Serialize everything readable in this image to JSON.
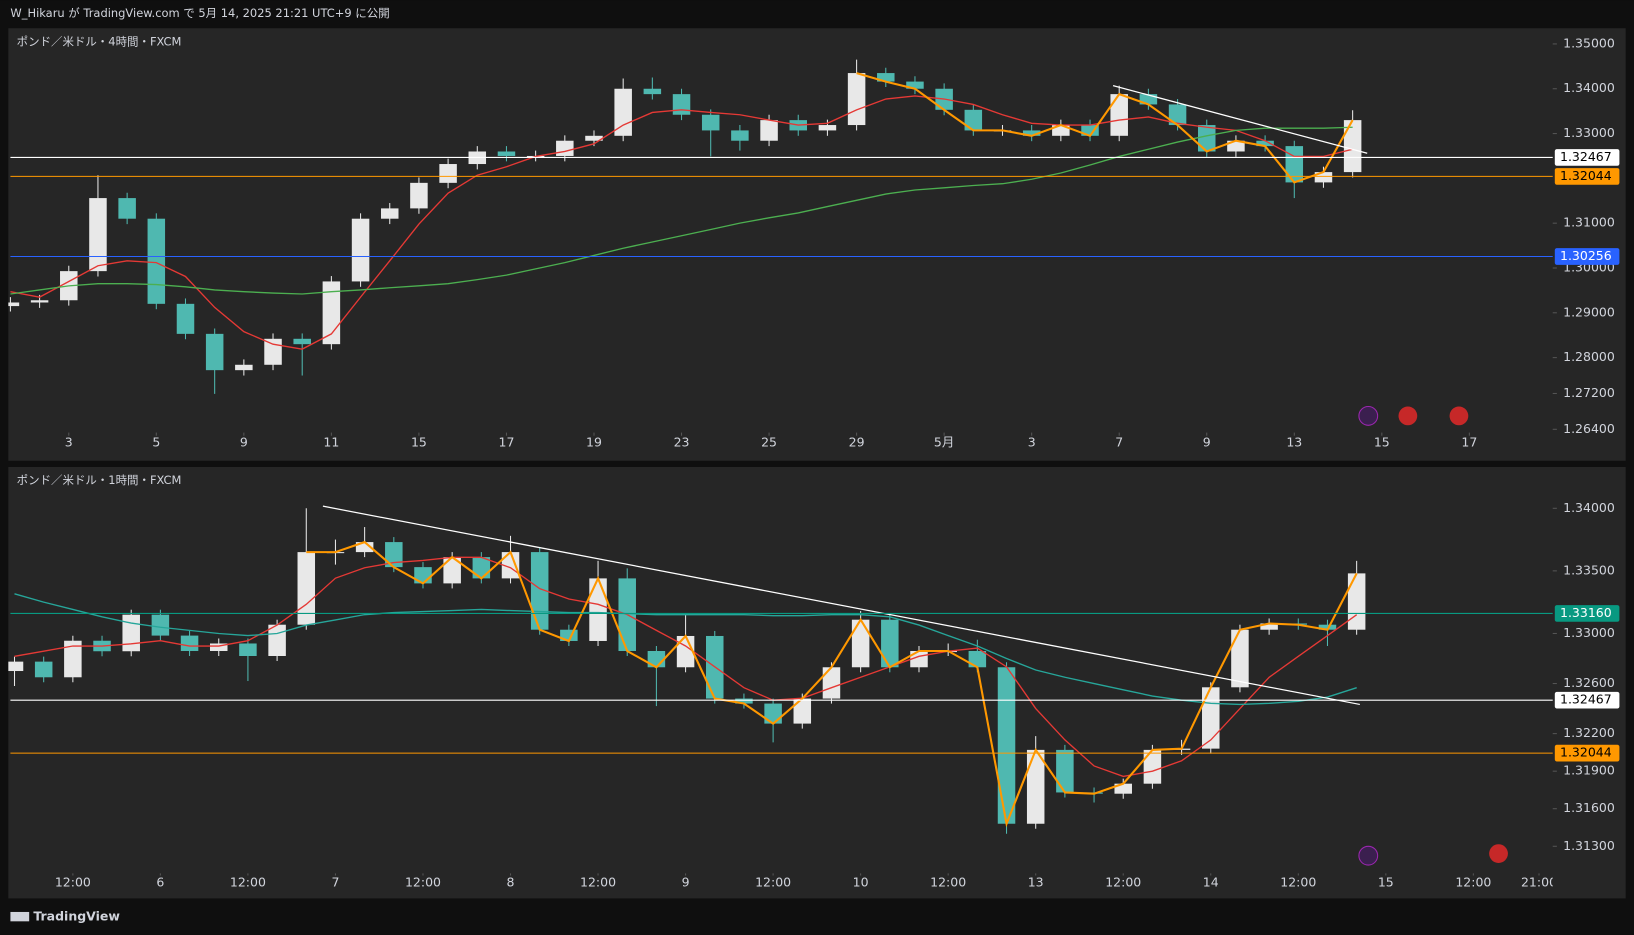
{
  "header": {
    "text": "W_Hikaru が TradingView.com で 5月 14, 2025 21:21 UTC+9 に公開"
  },
  "footer": {
    "text": "TradingView"
  },
  "chart_data": [
    {
      "type": "candlestick",
      "title": "ポンド／米ドル・4時間・FXCM",
      "up_color": "#e8e8e8",
      "down_color": "#4fb8b0",
      "open": [
        1.2915,
        1.2923,
        1.2928,
        1.2993,
        1.3156,
        1.311,
        1.292,
        1.2853,
        1.2772,
        1.2784,
        1.2842,
        1.283,
        1.297,
        1.311,
        1.3133,
        1.319,
        1.3232,
        1.326,
        1.325,
        1.325,
        1.3284,
        1.3295,
        1.34,
        1.3388,
        1.3342,
        1.3307,
        1.3284,
        1.333,
        1.3307,
        1.3319,
        1.3435,
        1.3416,
        1.34,
        1.3353,
        1.3307,
        1.3307,
        1.3295,
        1.3319,
        1.3295,
        1.3388,
        1.3365,
        1.3319,
        1.326,
        1.3284,
        1.3272,
        1.3191,
        1.3214
      ],
      "high": [
        1.2935,
        1.294,
        1.3005,
        1.3207,
        1.3168,
        1.3122,
        1.2932,
        1.2865,
        1.2796,
        1.2854,
        1.2854,
        1.2982,
        1.3122,
        1.3145,
        1.3202,
        1.3244,
        1.3272,
        1.3272,
        1.3262,
        1.3296,
        1.3307,
        1.3423,
        1.3425,
        1.34,
        1.3354,
        1.3319,
        1.3342,
        1.3342,
        1.3331,
        1.3465,
        1.3447,
        1.3428,
        1.3412,
        1.3365,
        1.3319,
        1.3319,
        1.3331,
        1.3331,
        1.3407,
        1.34,
        1.3377,
        1.3331,
        1.3296,
        1.3296,
        1.3284,
        1.3226,
        1.3352
      ],
      "low": [
        1.2903,
        1.2911,
        1.2916,
        1.2981,
        1.3098,
        1.2908,
        1.2841,
        1.2719,
        1.276,
        1.2772,
        1.276,
        1.2818,
        1.2958,
        1.3098,
        1.3121,
        1.3178,
        1.322,
        1.3238,
        1.3238,
        1.3238,
        1.3272,
        1.3283,
        1.3376,
        1.333,
        1.3249,
        1.3262,
        1.3272,
        1.3295,
        1.3295,
        1.3307,
        1.3404,
        1.3388,
        1.3341,
        1.3295,
        1.3295,
        1.3283,
        1.3283,
        1.3283,
        1.3283,
        1.3353,
        1.3307,
        1.3248,
        1.3248,
        1.326,
        1.3156,
        1.3179,
        1.3202
      ],
      "close": [
        1.2923,
        1.2928,
        1.2993,
        1.3156,
        1.311,
        1.292,
        1.2853,
        1.2772,
        1.2784,
        1.2842,
        1.283,
        1.297,
        1.311,
        1.3133,
        1.319,
        1.3232,
        1.326,
        1.325,
        1.325,
        1.3284,
        1.3295,
        1.34,
        1.3388,
        1.3342,
        1.3307,
        1.3284,
        1.333,
        1.3307,
        1.3319,
        1.3435,
        1.3416,
        1.34,
        1.3353,
        1.3307,
        1.3307,
        1.3295,
        1.3319,
        1.3295,
        1.3388,
        1.3365,
        1.3319,
        1.326,
        1.3284,
        1.3272,
        1.3191,
        1.3214,
        1.333
      ],
      "series": [
        {
          "color": "#e53935",
          "values": [
            1.2947,
            1.2935,
            1.297,
            1.3005,
            1.3016,
            1.3012,
            1.2981,
            1.2912,
            1.2858,
            1.283,
            1.2819,
            1.2853,
            1.2935,
            1.3016,
            1.3098,
            1.3167,
            1.3207,
            1.3226,
            1.3249,
            1.326,
            1.3277,
            1.3319,
            1.3347,
            1.3353,
            1.3347,
            1.3342,
            1.333,
            1.3319,
            1.3323,
            1.3353,
            1.3377,
            1.3384,
            1.3377,
            1.3365,
            1.3342,
            1.3323,
            1.3319,
            1.3319,
            1.333,
            1.3337,
            1.3323,
            1.3314,
            1.3307,
            1.3284,
            1.3249,
            1.3249,
            1.3265
          ]
        },
        {
          "color": "#4caf50",
          "values": [
            1.2942,
            1.2951,
            1.296,
            1.2965,
            1.2965,
            1.2963,
            1.2958,
            1.2951,
            1.2947,
            1.2944,
            1.2942,
            1.2947,
            1.2951,
            1.2956,
            1.296,
            1.2965,
            1.2974,
            1.2984,
            1.2998,
            1.3012,
            1.3028,
            1.3044,
            1.3058,
            1.3072,
            1.3086,
            1.31,
            1.3112,
            1.3123,
            1.3137,
            1.3151,
            1.3165,
            1.3174,
            1.3179,
            1.3184,
            1.3188,
            1.3198,
            1.3212,
            1.323,
            1.3249,
            1.3265,
            1.3281,
            1.3295,
            1.3307,
            1.3312,
            1.3312,
            1.3312,
            1.3314
          ]
        },
        {
          "color": "#ff9800",
          "values": [
            null,
            null,
            null,
            null,
            null,
            null,
            null,
            null,
            null,
            null,
            null,
            null,
            null,
            null,
            null,
            null,
            null,
            null,
            null,
            null,
            null,
            null,
            null,
            null,
            null,
            null,
            null,
            null,
            null,
            1.3435,
            1.3416,
            1.34,
            1.3353,
            1.3307,
            1.3307,
            1.3295,
            1.3319,
            1.3295,
            1.3388,
            1.3365,
            1.3319,
            1.326,
            1.3284,
            1.3272,
            1.3191,
            1.3214,
            1.333
          ]
        }
      ],
      "trendlines": [
        {
          "color": "#ffffff",
          "x": [
            37.79,
            46.5
          ],
          "y": [
            1.3407,
            1.3256
          ]
        }
      ],
      "price_lines": [
        {
          "value": 1.32467,
          "label": "1.32467",
          "color": "#ffffff"
        },
        {
          "value": 1.32044,
          "label": "1.32044",
          "color": "#ff9800"
        },
        {
          "value": 1.30256,
          "label": "1.30256",
          "color": "#2962ff"
        }
      ],
      "xlim": [
        0,
        52.857
      ],
      "xticks": [
        {
          "value": 2,
          "label": "3"
        },
        {
          "value": 5,
          "label": "5"
        },
        {
          "value": 8,
          "label": "9"
        },
        {
          "value": 11,
          "label": "11"
        },
        {
          "value": 14,
          "label": "15"
        },
        {
          "value": 17,
          "label": "17"
        },
        {
          "value": 20,
          "label": "19"
        },
        {
          "value": 23,
          "label": "23"
        },
        {
          "value": 26,
          "label": "25"
        },
        {
          "value": 29,
          "label": "29"
        },
        {
          "value": 32,
          "label": "5月"
        },
        {
          "value": 35,
          "label": "3"
        },
        {
          "value": 38,
          "label": "7"
        },
        {
          "value": 41,
          "label": "9"
        },
        {
          "value": 44,
          "label": "13"
        },
        {
          "value": 47,
          "label": "15"
        },
        {
          "value": 50,
          "label": "17"
        }
      ],
      "ylim": [
        1.2635,
        1.3535
      ],
      "yticks": [
        {
          "value": 1.35,
          "label": "1.35000"
        },
        {
          "value": 1.34,
          "label": "1.34000"
        },
        {
          "value": 1.33,
          "label": "1.33000"
        },
        {
          "value": 1.31,
          "label": "1.31000"
        },
        {
          "value": 1.3,
          "label": "1.30000"
        },
        {
          "value": 1.29,
          "label": "1.29000"
        },
        {
          "value": 1.28,
          "label": "1.28000"
        },
        {
          "value": 1.272,
          "label": "1.27200"
        },
        {
          "value": 1.264,
          "label": "1.26400"
        }
      ]
    },
    {
      "type": "candlestick",
      "title": "ポンド／米ドル・1時間・FXCM",
      "up_color": "#e8e8e8",
      "down_color": "#4fb8b0",
      "open": [
        1.327,
        1.32775,
        1.3265,
        1.32942,
        1.32858,
        1.3315,
        1.32983,
        1.3286,
        1.3292,
        1.3282,
        1.3307,
        1.3365,
        1.3365,
        1.3373,
        1.3353,
        1.334,
        1.3361,
        1.3344,
        1.3365,
        1.3303,
        1.3294,
        1.3344,
        1.3286,
        1.3273,
        1.3298,
        1.3248,
        1.3244,
        1.3228,
        1.3248,
        1.3273,
        1.3311,
        1.3273,
        1.3286,
        1.3286,
        1.3273,
        1.3148,
        1.3207,
        1.3173,
        1.3172,
        1.318,
        1.3207,
        1.3208,
        1.3257,
        1.3303,
        1.3308,
        1.3307,
        1.3303
      ],
      "high": [
        1.32815,
        1.32815,
        1.32982,
        1.32982,
        1.3319,
        1.3319,
        1.33023,
        1.3296,
        1.3296,
        1.3311,
        1.34,
        1.3375,
        1.3385,
        1.3377,
        1.3357,
        1.3365,
        1.3365,
        1.3378,
        1.3369,
        1.3307,
        1.3358,
        1.3352,
        1.329,
        1.3315,
        1.3302,
        1.3252,
        1.3248,
        1.3252,
        1.3277,
        1.3318,
        1.3315,
        1.329,
        1.3292,
        1.3295,
        1.3277,
        1.3218,
        1.3211,
        1.3177,
        1.3184,
        1.3211,
        1.3215,
        1.3261,
        1.3307,
        1.3312,
        1.3312,
        1.3311,
        1.3358
      ],
      "low": [
        1.3258,
        1.3261,
        1.3261,
        1.32818,
        1.32818,
        1.32943,
        1.3282,
        1.3282,
        1.3262,
        1.3278,
        1.3303,
        1.3355,
        1.3361,
        1.3349,
        1.3336,
        1.3336,
        1.334,
        1.334,
        1.3299,
        1.329,
        1.329,
        1.3282,
        1.3242,
        1.3269,
        1.3244,
        1.324,
        1.3213,
        1.3224,
        1.3244,
        1.3269,
        1.3269,
        1.3269,
        1.3282,
        1.3269,
        1.314,
        1.3144,
        1.3169,
        1.3165,
        1.3168,
        1.3176,
        1.3203,
        1.3204,
        1.3253,
        1.3299,
        1.3303,
        1.329,
        1.3299
      ],
      "close": [
        1.32775,
        1.3265,
        1.32942,
        1.32858,
        1.3315,
        1.32983,
        1.3286,
        1.3292,
        1.3282,
        1.3307,
        1.3365,
        1.3365,
        1.3373,
        1.3353,
        1.334,
        1.3361,
        1.3344,
        1.3365,
        1.3303,
        1.3294,
        1.3344,
        1.3286,
        1.3273,
        1.3298,
        1.3248,
        1.3244,
        1.3228,
        1.3248,
        1.3273,
        1.3311,
        1.3273,
        1.3286,
        1.3286,
        1.3273,
        1.3148,
        1.3207,
        1.3173,
        1.3172,
        1.318,
        1.3207,
        1.3208,
        1.3257,
        1.3303,
        1.3308,
        1.3307,
        1.3303,
        1.3348
      ],
      "series": [
        {
          "color": "#e53935",
          "values": [
            1.32817,
            1.32858,
            1.329,
            1.329,
            1.32917,
            1.32942,
            1.329,
            1.329,
            1.32942,
            1.33067,
            1.33233,
            1.33442,
            1.33525,
            1.33567,
            1.33583,
            1.33608,
            1.33608,
            1.33525,
            1.33358,
            1.33275,
            1.33233,
            1.3315,
            1.33025,
            1.329,
            1.32733,
            1.32567,
            1.32467,
            1.32483,
            1.32567,
            1.3265,
            1.32733,
            1.32817,
            1.32858,
            1.32883,
            1.32733,
            1.324,
            1.3215,
            1.31942,
            1.31858,
            1.319,
            1.31983,
            1.3215,
            1.324,
            1.3265,
            1.32817,
            1.32983,
            1.3315
          ]
        },
        {
          "color": "#26a69a",
          "values": [
            1.33317,
            1.3325,
            1.33192,
            1.33133,
            1.33083,
            1.3305,
            1.33025,
            1.33,
            1.32983,
            1.33,
            1.33067,
            1.33108,
            1.3315,
            1.33167,
            1.33175,
            1.33183,
            1.33192,
            1.33183,
            1.33175,
            1.33167,
            1.33167,
            1.33158,
            1.3315,
            1.3315,
            1.3315,
            1.3315,
            1.33142,
            1.33142,
            1.3315,
            1.3315,
            1.33133,
            1.33067,
            1.32983,
            1.329,
            1.328,
            1.32708,
            1.3265,
            1.326,
            1.3255,
            1.325,
            1.32467,
            1.32442,
            1.32433,
            1.32442,
            1.32458,
            1.32492,
            1.32567
          ]
        },
        {
          "color": "#ff9800",
          "values": [
            null,
            null,
            null,
            null,
            null,
            null,
            null,
            null,
            null,
            null,
            1.3365,
            1.3365,
            1.3373,
            1.3353,
            1.334,
            1.3361,
            1.3344,
            1.3365,
            1.3303,
            1.3294,
            1.3344,
            1.3286,
            1.3273,
            1.3298,
            1.3248,
            1.3244,
            1.3228,
            1.3248,
            1.3273,
            1.3311,
            1.3273,
            1.3286,
            1.3286,
            1.3273,
            1.3148,
            1.3207,
            1.3173,
            1.3172,
            1.318,
            1.3207,
            1.3208,
            1.3257,
            1.3303,
            1.3308,
            1.3307,
            1.3303,
            1.3348
          ]
        }
      ],
      "trendlines": [
        {
          "color": "#ffffff",
          "x": [
            10.57,
            46.11
          ],
          "y": [
            1.34017,
            1.32433
          ]
        }
      ],
      "price_lines": [
        {
          "value": 1.3316,
          "label": "1.33160",
          "color": "#089981"
        },
        {
          "value": 1.32467,
          "label": "1.32467",
          "color": "#ffffff"
        },
        {
          "value": 1.32044,
          "label": "1.32044",
          "color": "#ff9800"
        }
      ],
      "xlim": [
        -0.14,
        52.72
      ],
      "xticks": [
        {
          "value": 2,
          "label": "12:00"
        },
        {
          "value": 5,
          "label": "6"
        },
        {
          "value": 8,
          "label": "12:00"
        },
        {
          "value": 11,
          "label": "7"
        },
        {
          "value": 14,
          "label": "12:00"
        },
        {
          "value": 17,
          "label": "8"
        },
        {
          "value": 20,
          "label": "12:00"
        },
        {
          "value": 23,
          "label": "9"
        },
        {
          "value": 26,
          "label": "12:00"
        },
        {
          "value": 29,
          "label": "10"
        },
        {
          "value": 32,
          "label": "12:00"
        },
        {
          "value": 35,
          "label": "13"
        },
        {
          "value": 38,
          "label": "12:00"
        },
        {
          "value": 41,
          "label": "14"
        },
        {
          "value": 44,
          "label": "12:00"
        },
        {
          "value": 47,
          "label": "15"
        },
        {
          "value": 50,
          "label": "12:00"
        },
        {
          "value": 52.25,
          "label": "21:00"
        }
      ],
      "ylim": [
        1.311,
        1.3433
      ],
      "yticks": [
        {
          "value": 1.34,
          "label": "1.34000"
        },
        {
          "value": 1.335,
          "label": "1.33500"
        },
        {
          "value": 1.33,
          "label": "1.33000"
        },
        {
          "value": 1.326,
          "label": "1.32600"
        },
        {
          "value": 1.322,
          "label": "1.32200"
        },
        {
          "value": 1.319,
          "label": "1.31900"
        },
        {
          "value": 1.316,
          "label": "1.31600"
        },
        {
          "value": 1.313,
          "label": "1.31300"
        }
      ]
    }
  ]
}
